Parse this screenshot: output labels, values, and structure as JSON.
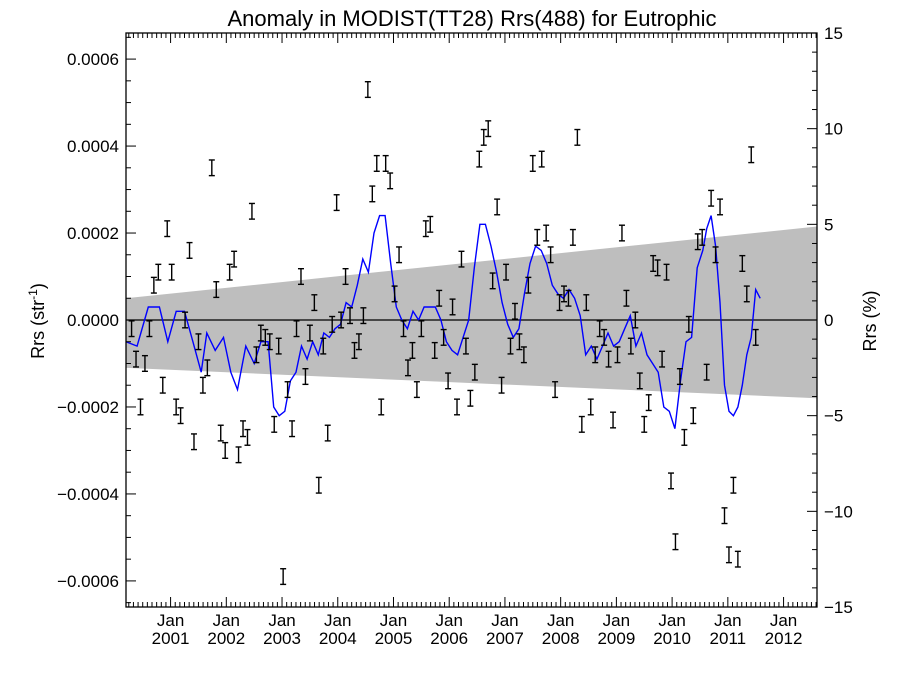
{
  "chart_data": {
    "type": "scatter",
    "title": "Anomaly in MODIST(TT28) Rrs(488) for Eutrophic",
    "ylabel_left": {
      "base": "Rrs (str",
      "sup": "-1",
      "tail": ")"
    },
    "ylabel_right": "Rrs (%)",
    "x_range": [
      2000.2,
      2012.6
    ],
    "ylim_left": [
      -0.00066,
      0.00066
    ],
    "ylim_right": [
      -15,
      15
    ],
    "x_ticks": [
      {
        "x": 2001.0,
        "line1": "Jan",
        "line2": "2001"
      },
      {
        "x": 2002.0,
        "line1": "Jan",
        "line2": "2002"
      },
      {
        "x": 2003.0,
        "line1": "Jan",
        "line2": "2003"
      },
      {
        "x": 2004.0,
        "line1": "Jan",
        "line2": "2004"
      },
      {
        "x": 2005.0,
        "line1": "Jan",
        "line2": "2005"
      },
      {
        "x": 2006.0,
        "line1": "Jan",
        "line2": "2006"
      },
      {
        "x": 2007.0,
        "line1": "Jan",
        "line2": "2007"
      },
      {
        "x": 2008.0,
        "line1": "Jan",
        "line2": "2008"
      },
      {
        "x": 2009.0,
        "line1": "Jan",
        "line2": "2009"
      },
      {
        "x": 2010.0,
        "line1": "Jan",
        "line2": "2010"
      },
      {
        "x": 2011.0,
        "line1": "Jan",
        "line2": "2011"
      },
      {
        "x": 2012.0,
        "line1": "Jan",
        "line2": "2012"
      }
    ],
    "y_ticks_left": [
      {
        "v": 0.0006,
        "label": "0.0006"
      },
      {
        "v": 0.0004,
        "label": "0.0004"
      },
      {
        "v": 0.0002,
        "label": "0.0002"
      },
      {
        "v": 0.0,
        "label": "0.0000"
      },
      {
        "v": -0.0002,
        "label": "−0.0002"
      },
      {
        "v": -0.0004,
        "label": "−0.0004"
      },
      {
        "v": -0.0006,
        "label": "−0.0006"
      }
    ],
    "y_ticks_right": [
      {
        "v": 15,
        "label": "15"
      },
      {
        "v": 10,
        "label": "10"
      },
      {
        "v": 5,
        "label": "5"
      },
      {
        "v": 0,
        "label": "0"
      },
      {
        "v": -5,
        "label": "−5"
      },
      {
        "v": -10,
        "label": "−10"
      },
      {
        "v": -15,
        "label": "−15"
      }
    ],
    "band": {
      "color": "#bebebe",
      "upper": [
        [
          2000.2,
          5e-05
        ],
        [
          2012.6,
          0.000215
        ]
      ],
      "lower": [
        [
          2000.2,
          -0.00011
        ],
        [
          2012.6,
          -0.00018
        ]
      ]
    },
    "zero_line": 0,
    "errorbar_halfwidth": 1.8e-05,
    "series": [
      {
        "kind": "errorbar",
        "color": "#000000",
        "points": [
          [
            2000.3,
            -2e-05
          ],
          [
            2000.38,
            -9e-05
          ],
          [
            2000.46,
            -0.0002
          ],
          [
            2000.54,
            -0.0001
          ],
          [
            2000.62,
            -2e-05
          ],
          [
            2000.7,
            8e-05
          ],
          [
            2000.78,
            0.00011
          ],
          [
            2000.86,
            -0.00015
          ],
          [
            2000.94,
            0.00021
          ],
          [
            2001.02,
            0.00011
          ],
          [
            2001.1,
            -0.0002
          ],
          [
            2001.18,
            -0.00022
          ],
          [
            2001.26,
            0.0
          ],
          [
            2001.34,
            0.00016
          ],
          [
            2001.42,
            -0.00028
          ],
          [
            2001.5,
            -5e-05
          ],
          [
            2001.58,
            -0.00015
          ],
          [
            2001.66,
            -0.00011
          ],
          [
            2001.74,
            0.00035
          ],
          [
            2001.82,
            7e-05
          ],
          [
            2001.9,
            -0.00026
          ],
          [
            2001.98,
            -0.0003
          ],
          [
            2002.06,
            0.00011
          ],
          [
            2002.14,
            0.00014
          ],
          [
            2002.22,
            -0.00031
          ],
          [
            2002.3,
            -0.00025
          ],
          [
            2002.38,
            -0.00027
          ],
          [
            2002.46,
            0.00025
          ],
          [
            2002.54,
            -8e-05
          ],
          [
            2002.62,
            -3e-05
          ],
          [
            2002.7,
            -4e-05
          ],
          [
            2002.78,
            -5e-05
          ],
          [
            2002.86,
            -0.00024
          ],
          [
            2002.94,
            -6e-05
          ],
          [
            2003.02,
            -0.00059
          ],
          [
            2003.1,
            -0.00016
          ],
          [
            2003.18,
            -0.00025
          ],
          [
            2003.26,
            -2e-05
          ],
          [
            2003.34,
            0.0001
          ],
          [
            2003.42,
            -0.00013
          ],
          [
            2003.5,
            -3e-05
          ],
          [
            2003.58,
            4e-05
          ],
          [
            2003.66,
            -0.00038
          ],
          [
            2003.74,
            -6e-05
          ],
          [
            2003.82,
            -0.00026
          ],
          [
            2003.9,
            -1e-05
          ],
          [
            2003.98,
            0.00027
          ],
          [
            2004.06,
            0.0
          ],
          [
            2004.14,
            0.0001
          ],
          [
            2004.22,
            1e-05
          ],
          [
            2004.3,
            -7e-05
          ],
          [
            2004.38,
            -5e-05
          ],
          [
            2004.46,
            1e-05
          ],
          [
            2004.54,
            0.00053
          ],
          [
            2004.62,
            0.00029
          ],
          [
            2004.7,
            0.00036
          ],
          [
            2004.78,
            -0.0002
          ],
          [
            2004.86,
            0.00036
          ],
          [
            2004.94,
            0.00032
          ],
          [
            2005.02,
            6e-05
          ],
          [
            2005.1,
            0.00015
          ],
          [
            2005.18,
            -2e-05
          ],
          [
            2005.26,
            -0.00011
          ],
          [
            2005.34,
            -7e-05
          ],
          [
            2005.42,
            -0.00016
          ],
          [
            2005.5,
            -2e-05
          ],
          [
            2005.58,
            0.00021
          ],
          [
            2005.66,
            0.00022
          ],
          [
            2005.74,
            -7e-05
          ],
          [
            2005.82,
            5e-05
          ],
          [
            2005.9,
            -4e-05
          ],
          [
            2005.98,
            -0.00014
          ],
          [
            2006.06,
            3e-05
          ],
          [
            2006.14,
            -0.0002
          ],
          [
            2006.22,
            0.00014
          ],
          [
            2006.3,
            -6e-05
          ],
          [
            2006.38,
            -0.00018
          ],
          [
            2006.46,
            -0.00012
          ],
          [
            2006.54,
            0.00037
          ],
          [
            2006.62,
            0.00042
          ],
          [
            2006.7,
            0.00044
          ],
          [
            2006.78,
            9e-05
          ],
          [
            2006.86,
            0.00026
          ],
          [
            2006.94,
            -0.00015
          ],
          [
            2007.02,
            0.00011
          ],
          [
            2007.1,
            -6e-05
          ],
          [
            2007.18,
            2e-05
          ],
          [
            2007.26,
            -5e-05
          ],
          [
            2007.34,
            -8e-05
          ],
          [
            2007.42,
            8e-05
          ],
          [
            2007.5,
            0.00036
          ],
          [
            2007.58,
            0.00019
          ],
          [
            2007.66,
            0.00037
          ],
          [
            2007.74,
            0.0002
          ],
          [
            2007.82,
            0.00015
          ],
          [
            2007.9,
            -0.00016
          ],
          [
            2007.98,
            4e-05
          ],
          [
            2008.06,
            6e-05
          ],
          [
            2008.14,
            5e-05
          ],
          [
            2008.22,
            0.00019
          ],
          [
            2008.3,
            0.00042
          ],
          [
            2008.38,
            -0.00024
          ],
          [
            2008.46,
            4e-05
          ],
          [
            2008.54,
            -0.0002
          ],
          [
            2008.62,
            -8e-05
          ],
          [
            2008.7,
            -2e-05
          ],
          [
            2008.78,
            -4e-05
          ],
          [
            2008.86,
            -9e-05
          ],
          [
            2008.94,
            -0.00023
          ],
          [
            2009.02,
            -8e-05
          ],
          [
            2009.1,
            0.0002
          ],
          [
            2009.18,
            5e-05
          ],
          [
            2009.26,
            -6e-05
          ],
          [
            2009.34,
            0.0
          ],
          [
            2009.42,
            -0.00014
          ],
          [
            2009.5,
            -0.00024
          ],
          [
            2009.58,
            -0.00019
          ],
          [
            2009.66,
            0.00013
          ],
          [
            2009.74,
            0.00012
          ],
          [
            2009.82,
            -9e-05
          ],
          [
            2009.9,
            0.00011
          ],
          [
            2009.98,
            -0.00037
          ],
          [
            2010.06,
            -0.00051
          ],
          [
            2010.14,
            -0.00013
          ],
          [
            2010.22,
            -0.00027
          ],
          [
            2010.3,
            -1e-05
          ],
          [
            2010.38,
            -0.00022
          ],
          [
            2010.46,
            0.00018
          ],
          [
            2010.54,
            0.00019
          ],
          [
            2010.62,
            -0.00012
          ],
          [
            2010.7,
            0.00028
          ],
          [
            2010.78,
            0.00015
          ],
          [
            2010.86,
            0.00026
          ],
          [
            2010.94,
            -0.00045
          ],
          [
            2011.02,
            -0.00054
          ],
          [
            2011.1,
            -0.00038
          ],
          [
            2011.18,
            -0.00055
          ],
          [
            2011.26,
            0.00013
          ],
          [
            2011.34,
            6e-05
          ],
          [
            2011.42,
            0.00038
          ],
          [
            2011.5,
            -4e-05
          ]
        ]
      },
      {
        "kind": "line",
        "color": "#0000ff",
        "points": [
          [
            2000.2,
            -5e-05
          ],
          [
            2000.4,
            -6e-05
          ],
          [
            2000.6,
            3e-05
          ],
          [
            2000.8,
            3e-05
          ],
          [
            2000.95,
            -5e-05
          ],
          [
            2001.1,
            2e-05
          ],
          [
            2001.25,
            2e-05
          ],
          [
            2001.4,
            -5e-05
          ],
          [
            2001.55,
            -0.00012
          ],
          [
            2001.65,
            -3e-05
          ],
          [
            2001.8,
            -7e-05
          ],
          [
            2001.95,
            -4e-05
          ],
          [
            2002.08,
            -0.00012
          ],
          [
            2002.2,
            -0.00016
          ],
          [
            2002.35,
            -6e-05
          ],
          [
            2002.5,
            -0.0001
          ],
          [
            2002.62,
            -5e-05
          ],
          [
            2002.75,
            -5e-05
          ],
          [
            2002.85,
            -0.0002
          ],
          [
            2002.95,
            -0.00022
          ],
          [
            2003.05,
            -0.00021
          ],
          [
            2003.15,
            -0.00014
          ],
          [
            2003.25,
            -0.00012
          ],
          [
            2003.35,
            -6e-05
          ],
          [
            2003.45,
            -9e-05
          ],
          [
            2003.55,
            -5e-05
          ],
          [
            2003.65,
            -8e-05
          ],
          [
            2003.75,
            -3e-05
          ],
          [
            2003.85,
            -4e-05
          ],
          [
            2003.95,
            -2e-05
          ],
          [
            2004.05,
            -1e-05
          ],
          [
            2004.15,
            4e-05
          ],
          [
            2004.25,
            3e-05
          ],
          [
            2004.35,
            8e-05
          ],
          [
            2004.45,
            0.00014
          ],
          [
            2004.55,
            0.00011
          ],
          [
            2004.65,
            0.0002
          ],
          [
            2004.75,
            0.00024
          ],
          [
            2004.85,
            0.00024
          ],
          [
            2004.95,
            0.00013
          ],
          [
            2005.05,
            3e-05
          ],
          [
            2005.15,
            0.0
          ],
          [
            2005.25,
            -2e-05
          ],
          [
            2005.35,
            2e-05
          ],
          [
            2005.45,
            0.0
          ],
          [
            2005.55,
            3e-05
          ],
          [
            2005.65,
            3e-05
          ],
          [
            2005.75,
            3e-05
          ],
          [
            2005.85,
            0.0
          ],
          [
            2005.95,
            -5e-05
          ],
          [
            2006.05,
            -7e-05
          ],
          [
            2006.15,
            -8e-05
          ],
          [
            2006.25,
            -4e-05
          ],
          [
            2006.35,
            0.0
          ],
          [
            2006.45,
            0.00012
          ],
          [
            2006.55,
            0.00022
          ],
          [
            2006.65,
            0.00022
          ],
          [
            2006.75,
            0.00017
          ],
          [
            2006.85,
            0.00011
          ],
          [
            2006.95,
            4e-05
          ],
          [
            2007.05,
            -1e-05
          ],
          [
            2007.15,
            -4e-05
          ],
          [
            2007.25,
            -2e-05
          ],
          [
            2007.35,
            6e-05
          ],
          [
            2007.45,
            0.00013
          ],
          [
            2007.55,
            0.00017
          ],
          [
            2007.65,
            0.00016
          ],
          [
            2007.75,
            0.00013
          ],
          [
            2007.85,
            8e-05
          ],
          [
            2007.95,
            6e-05
          ],
          [
            2008.05,
            5e-05
          ],
          [
            2008.15,
            7e-05
          ],
          [
            2008.25,
            5e-05
          ],
          [
            2008.35,
            1e-05
          ],
          [
            2008.45,
            -8e-05
          ],
          [
            2008.55,
            -6e-05
          ],
          [
            2008.65,
            -9e-05
          ],
          [
            2008.75,
            -6e-05
          ],
          [
            2008.85,
            -3e-05
          ],
          [
            2008.95,
            -6e-05
          ],
          [
            2009.05,
            -5e-05
          ],
          [
            2009.15,
            -2e-05
          ],
          [
            2009.25,
            1e-05
          ],
          [
            2009.35,
            -6e-05
          ],
          [
            2009.45,
            -3e-05
          ],
          [
            2009.55,
            -8e-05
          ],
          [
            2009.65,
            -0.0001
          ],
          [
            2009.75,
            -0.00012
          ],
          [
            2009.85,
            -0.0002
          ],
          [
            2009.95,
            -0.00021
          ],
          [
            2010.05,
            -0.00025
          ],
          [
            2010.15,
            -0.00014
          ],
          [
            2010.25,
            -5e-05
          ],
          [
            2010.35,
            -4e-05
          ],
          [
            2010.45,
            0.00012
          ],
          [
            2010.55,
            0.00016
          ],
          [
            2010.62,
            0.00021
          ],
          [
            2010.7,
            0.00024
          ],
          [
            2010.78,
            0.00017
          ],
          [
            2010.86,
            4e-05
          ],
          [
            2010.94,
            -0.00015
          ],
          [
            2011.02,
            -0.00021
          ],
          [
            2011.1,
            -0.00022
          ],
          [
            2011.18,
            -0.0002
          ],
          [
            2011.26,
            -0.00015
          ],
          [
            2011.34,
            -8e-05
          ],
          [
            2011.42,
            -4e-05
          ],
          [
            2011.5,
            7e-05
          ],
          [
            2011.58,
            5e-05
          ]
        ]
      }
    ]
  }
}
